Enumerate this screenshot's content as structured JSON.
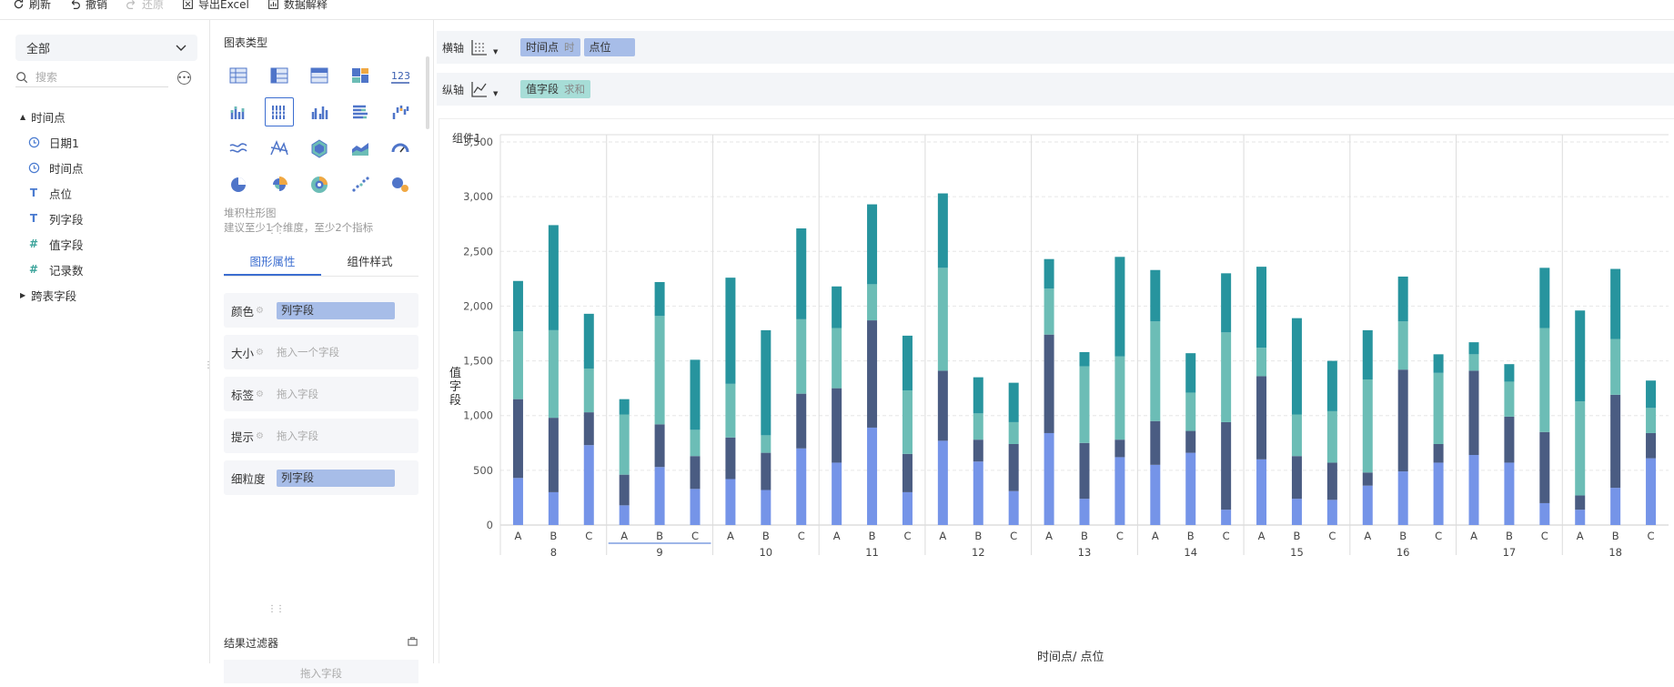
{
  "toolbar": {
    "refresh": "刷新",
    "undo": "撤销",
    "redo": "还原",
    "export": "导出Excel",
    "explain": "数据解释"
  },
  "left": {
    "dataset_select": "全部",
    "search_placeholder": "搜索",
    "group": "时间点",
    "fields": [
      {
        "icon": "clock-icon",
        "label": "日期1"
      },
      {
        "icon": "clock-icon",
        "label": "时间点"
      },
      {
        "icon": "text-icon",
        "label": "点位"
      },
      {
        "icon": "text-icon",
        "label": "列字段"
      },
      {
        "icon": "number-icon",
        "label": "值字段"
      },
      {
        "icon": "number-icon",
        "label": "记录数"
      }
    ],
    "group2": "跨表字段"
  },
  "middle": {
    "chart_type_title": "图表类型",
    "number_icon_text": "123",
    "hint_line1": "堆积柱形图",
    "hint_line2": "建议至少1个维度，至少2个指标",
    "tab_graphic": "图形属性",
    "tab_style": "组件样式",
    "props": {
      "color_label": "颜色",
      "color_value": "列字段",
      "size_label": "大小",
      "size_placeholder": "拖入一个字段",
      "label_label": "标签",
      "label_placeholder": "拖入字段",
      "tip_label": "提示",
      "tip_placeholder": "拖入字段",
      "grain_label": "细粒度",
      "grain_value": "列字段"
    },
    "filter_title": "结果过滤器",
    "filter_placeholder": "拖入字段"
  },
  "axes_config": {
    "x_label": "横轴",
    "x_pill1": "时间点",
    "x_pill1_sub": "时",
    "x_pill2": "点位",
    "y_label": "纵轴",
    "y_pill": "值字段",
    "y_pill_sub": "求和"
  },
  "component_title": "组件1",
  "colors": {
    "s1": "#7594e8",
    "s2": "#4a5c82",
    "s3": "#6cbdb6",
    "s4": "#27949e",
    "accent": "#3c6ed0"
  },
  "chart_data": {
    "type": "bar",
    "stacked": true,
    "ylabel": "值字段",
    "xlabel": "时间点/ 点位",
    "ylim": [
      0,
      3500
    ],
    "yticks": [
      "0",
      "500",
      "1,000",
      "1,500",
      "2,000",
      "2,500",
      "3,000",
      "3,500"
    ],
    "groups": [
      "8",
      "9",
      "10",
      "11",
      "12",
      "13",
      "14",
      "15",
      "16",
      "17",
      "18"
    ],
    "subcategories": [
      "A",
      "B",
      "C"
    ],
    "series_colors": [
      "#7594e8",
      "#4a5c82",
      "#6cbdb6",
      "#27949e"
    ],
    "stacks": [
      [
        [
          430,
          720,
          620,
          460
        ],
        [
          300,
          680,
          800,
          960
        ],
        [
          730,
          300,
          400,
          500
        ]
      ],
      [
        [
          180,
          280,
          550,
          140
        ],
        [
          530,
          390,
          990,
          310
        ],
        [
          330,
          300,
          240,
          640
        ]
      ],
      [
        [
          420,
          380,
          490,
          970
        ],
        [
          320,
          340,
          160,
          960
        ],
        [
          700,
          500,
          680,
          830
        ]
      ],
      [
        [
          570,
          680,
          550,
          380
        ],
        [
          890,
          980,
          330,
          730
        ],
        [
          300,
          350,
          580,
          500
        ]
      ],
      [
        [
          770,
          640,
          940,
          680
        ],
        [
          580,
          200,
          240,
          330
        ],
        [
          310,
          430,
          200,
          360
        ]
      ],
      [
        [
          840,
          900,
          420,
          270
        ],
        [
          240,
          510,
          700,
          130
        ],
        [
          620,
          160,
          760,
          910
        ]
      ],
      [
        [
          550,
          400,
          910,
          470
        ],
        [
          660,
          200,
          350,
          360
        ],
        [
          140,
          800,
          820,
          540
        ]
      ],
      [
        [
          600,
          760,
          260,
          740
        ],
        [
          240,
          390,
          380,
          880
        ],
        [
          230,
          340,
          470,
          460
        ]
      ],
      [
        [
          360,
          120,
          850,
          450
        ],
        [
          490,
          930,
          440,
          410
        ],
        [
          570,
          170,
          650,
          170
        ]
      ],
      [
        [
          640,
          770,
          150,
          110
        ],
        [
          570,
          420,
          320,
          160
        ],
        [
          200,
          650,
          950,
          550
        ]
      ],
      [
        [
          140,
          130,
          860,
          830
        ],
        [
          340,
          850,
          510,
          640
        ],
        [
          610,
          230,
          230,
          250
        ]
      ]
    ]
  }
}
